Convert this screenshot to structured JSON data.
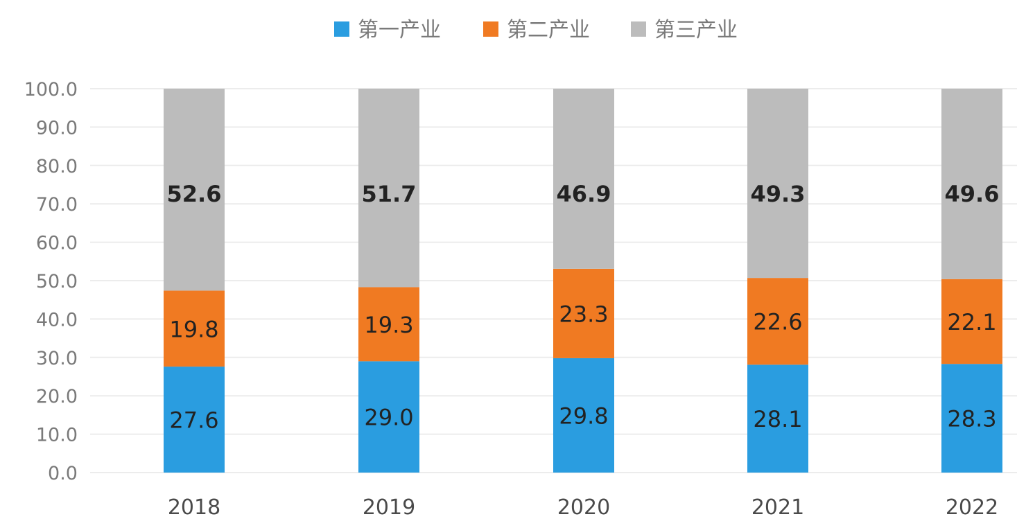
{
  "chart_data": {
    "type": "bar",
    "stacked": true,
    "categories": [
      "2018",
      "2019",
      "2020",
      "2021",
      "2022"
    ],
    "series": [
      {
        "name": "第一产业",
        "color": "#2a9de0",
        "values": [
          27.6,
          29.0,
          29.8,
          28.1,
          28.3
        ],
        "labels": [
          "27.6",
          "29.0",
          "29.8",
          "28.1",
          "28.3"
        ]
      },
      {
        "name": "第二产业",
        "color": "#f07a22",
        "values": [
          19.8,
          19.3,
          23.3,
          22.6,
          22.1
        ],
        "labels": [
          "19.8",
          "19.3",
          "23.3",
          "22.6",
          "22.1"
        ]
      },
      {
        "name": "第三产业",
        "color": "#bcbcbc",
        "values": [
          52.6,
          51.7,
          46.9,
          49.3,
          49.6
        ],
        "labels": [
          "52.6",
          "51.7",
          "46.9",
          "49.3",
          "49.6"
        ]
      }
    ],
    "title": "",
    "xlabel": "",
    "ylabel": "",
    "ylim": [
      0,
      100
    ],
    "yticks": [
      "0.0",
      "10.0",
      "20.0",
      "30.0",
      "40.0",
      "50.0",
      "60.0",
      "70.0",
      "80.0",
      "90.0",
      "100.0"
    ],
    "grid": true,
    "legend_position": "top-center"
  }
}
